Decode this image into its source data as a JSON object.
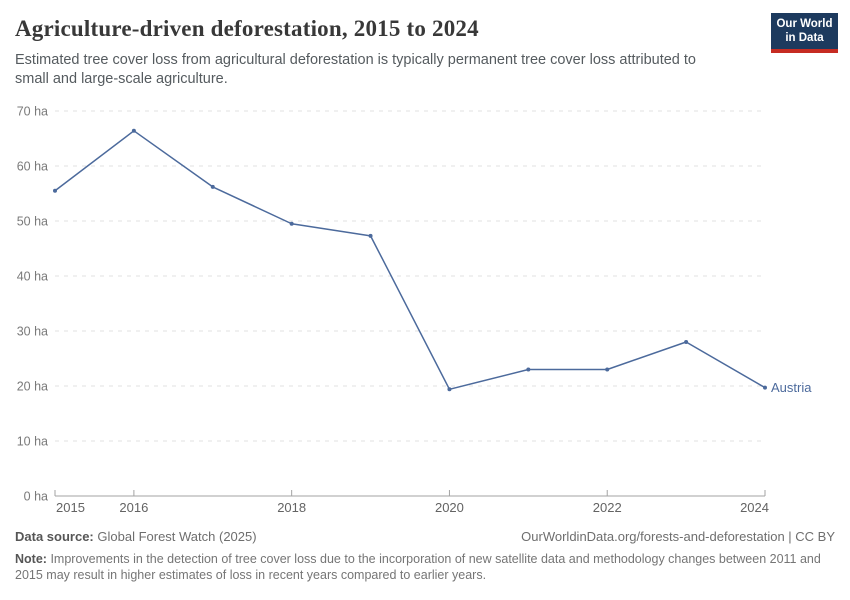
{
  "header": {
    "title": "Agriculture-driven deforestation, 2015 to 2024",
    "subtitle": "Estimated tree cover loss from agricultural deforestation is typically permanent tree cover loss attributed to small and large-scale agriculture.",
    "logo": {
      "line1": "Our World",
      "line2": "in Data",
      "bg_color": "#1d3a5e",
      "bar_color": "#c62b22"
    }
  },
  "chart_data": {
    "type": "line",
    "title": "Agriculture-driven deforestation, 2015 to 2024",
    "unit": "ha",
    "x": [
      2015,
      2016,
      2017,
      2018,
      2019,
      2020,
      2021,
      2022,
      2023,
      2024
    ],
    "series": [
      {
        "name": "Austria",
        "color": "#4c6a9c",
        "values": [
          55.5,
          66.4,
          56.2,
          49.5,
          47.3,
          19.4,
          23,
          23,
          28,
          19.7
        ]
      }
    ],
    "ylim": [
      0,
      70
    ],
    "yticks": [
      0,
      10,
      20,
      30,
      40,
      50,
      60,
      70
    ],
    "ytick_suffix": " ha",
    "xticks": [
      2015,
      2016,
      2018,
      2020,
      2022,
      2024
    ],
    "grid": "horizontal-dashed",
    "legend": "series-end-label",
    "end_label": "Austria",
    "colors": {
      "gridline": "#e0e0e0",
      "axis_line": "#a3a3a3",
      "y_tick_label": "#7a7a7a",
      "x_tick_label": "#636363"
    }
  },
  "footer": {
    "datasource_label": "Data source:",
    "datasource_value": "Global Forest Watch (2025)",
    "link": "OurWorldinData.org/forests-and-deforestation | CC BY",
    "note_label": "Note:",
    "note_text": "Improvements in the detection of tree cover loss due to the incorporation of new satellite data and methodology changes between 2011 and 2015 may result in higher estimates of loss in recent years compared to earlier years."
  }
}
